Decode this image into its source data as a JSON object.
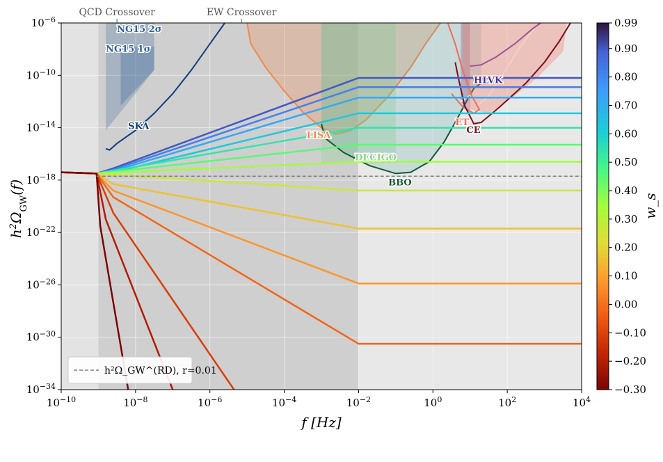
{
  "chart_data": {
    "type": "line",
    "title": "",
    "xlabel": "f  [Hz]",
    "ylabel": "h²Ω_GW(f)",
    "x_scale": "log",
    "y_scale": "log",
    "xlim": [
      1e-10,
      10000
    ],
    "ylim": [
      1e-34,
      1e-06
    ],
    "x_ticks": [
      {
        "label": "10^-10",
        "base": "10",
        "exp": "−10",
        "value": 1e-10
      },
      {
        "label": "10^-8",
        "base": "10",
        "exp": "−8",
        "value": 1e-08
      },
      {
        "label": "10^-6",
        "base": "10",
        "exp": "−6",
        "value": 1e-06
      },
      {
        "label": "10^-4",
        "base": "10",
        "exp": "−4",
        "value": 0.0001
      },
      {
        "label": "10^-2",
        "base": "10",
        "exp": "−2",
        "value": 0.01
      },
      {
        "label": "10^0",
        "base": "10",
        "exp": "0",
        "value": 1
      },
      {
        "label": "10^2",
        "base": "10",
        "exp": "2",
        "value": 100
      },
      {
        "label": "10^4",
        "base": "10",
        "exp": "4",
        "value": 10000
      }
    ],
    "y_ticks": [
      {
        "label": "10^-6",
        "base": "10",
        "exp": "−6",
        "value": 1e-06
      },
      {
        "label": "10^-10",
        "base": "10",
        "exp": "−10",
        "value": 1e-10
      },
      {
        "label": "10^-14",
        "base": "10",
        "exp": "−14",
        "value": 1e-14
      },
      {
        "label": "10^-18",
        "base": "10",
        "exp": "−18",
        "value": 1e-18
      },
      {
        "label": "10^-22",
        "base": "10",
        "exp": "−22",
        "value": 1e-22
      },
      {
        "label": "10^-26",
        "base": "10",
        "exp": "−26",
        "value": 1e-26
      },
      {
        "label": "10^-30",
        "base": "10",
        "exp": "−30",
        "value": 1e-30
      },
      {
        "label": "10^-34",
        "base": "10",
        "exp": "−34",
        "value": 1e-34
      }
    ],
    "top_markers": [
      {
        "label": "QCD Crossover",
        "log_f": -8.5
      },
      {
        "label": "EW Crossover",
        "log_f": -5.15
      }
    ],
    "shaded_regions": [
      {
        "log_f_range": [
          -10,
          -9.0
        ],
        "color": "#e3e3e3"
      },
      {
        "log_f_range": [
          -9.0,
          -2.0
        ],
        "color": "#cfcfcf"
      },
      {
        "log_f_range": [
          -2.0,
          4.0
        ],
        "color": "#e8e8e8"
      }
    ],
    "legend": {
      "position": "lower-left",
      "entry": "h²Ω_GW^(RD), r=0.01",
      "style": "dashed",
      "color": "#808080"
    },
    "reference_line": {
      "log_h2omega": -17.7
    },
    "series_note": "Each curve is log10(h²Ω) vs log10(f); one curve per equation-of-state w_s, colored by colorbar.",
    "series": [
      {
        "w_s": 0.99,
        "points": [
          [
            -10,
            -17.4
          ],
          [
            -9.05,
            -17.5
          ],
          [
            -8.6,
            -17.1
          ],
          [
            -2.0,
            -10.2
          ],
          [
            4.0,
            -10.2
          ]
        ]
      },
      {
        "w_s": 0.9,
        "points": [
          [
            -10,
            -17.4
          ],
          [
            -9.05,
            -17.5
          ],
          [
            -8.6,
            -17.2
          ],
          [
            -2.0,
            -10.9
          ],
          [
            4.0,
            -10.9
          ]
        ]
      },
      {
        "w_s": 0.8,
        "points": [
          [
            -10,
            -17.4
          ],
          [
            -9.05,
            -17.5
          ],
          [
            -8.6,
            -17.3
          ],
          [
            -2.0,
            -11.7
          ],
          [
            4.0,
            -11.7
          ]
        ]
      },
      {
        "w_s": 0.7,
        "points": [
          [
            -10,
            -17.4
          ],
          [
            -9.05,
            -17.5
          ],
          [
            -8.6,
            -17.4
          ],
          [
            -2.0,
            -12.9
          ],
          [
            4.0,
            -12.9
          ]
        ]
      },
      {
        "w_s": 0.6,
        "points": [
          [
            -10,
            -17.4
          ],
          [
            -9.05,
            -17.5
          ],
          [
            -2.0,
            -14.0
          ],
          [
            4.0,
            -14.0
          ]
        ]
      },
      {
        "w_s": 0.5,
        "points": [
          [
            -10,
            -17.4
          ],
          [
            -9.05,
            -17.5
          ],
          [
            -2.0,
            -15.3
          ],
          [
            4.0,
            -15.3
          ]
        ]
      },
      {
        "w_s": 0.4,
        "points": [
          [
            -10,
            -17.4
          ],
          [
            -9.05,
            -17.5
          ],
          [
            -2.0,
            -16.6
          ],
          [
            4.0,
            -16.6
          ]
        ]
      },
      {
        "w_s": 0.3,
        "points": [
          [
            -10,
            -17.4
          ],
          [
            -9.05,
            -17.5
          ],
          [
            -2.0,
            -18.8
          ],
          [
            4.0,
            -18.8
          ]
        ]
      },
      {
        "w_s": 0.2,
        "points": [
          [
            -10,
            -17.4
          ],
          [
            -9.05,
            -17.5
          ],
          [
            -8.6,
            -18.3
          ],
          [
            -2.0,
            -21.7
          ],
          [
            4.0,
            -21.7
          ]
        ]
      },
      {
        "w_s": 0.1,
        "points": [
          [
            -10,
            -17.4
          ],
          [
            -9.05,
            -17.5
          ],
          [
            -8.6,
            -18.8
          ],
          [
            -2.0,
            -25.9
          ],
          [
            4.0,
            -25.9
          ]
        ]
      },
      {
        "w_s": 0.0,
        "points": [
          [
            -10,
            -17.4
          ],
          [
            -9.05,
            -17.5
          ],
          [
            -8.6,
            -19.3
          ],
          [
            -2.0,
            -30.5
          ],
          [
            4.0,
            -30.5
          ]
        ]
      },
      {
        "w_s": -0.1,
        "points": [
          [
            -10,
            -17.4
          ],
          [
            -9.05,
            -17.5
          ],
          [
            -8.6,
            -20.5
          ],
          [
            -5.35,
            -34.0
          ]
        ]
      },
      {
        "w_s": -0.2,
        "points": [
          [
            -10,
            -17.4
          ],
          [
            -9.05,
            -17.5
          ],
          [
            -8.8,
            -21.0
          ],
          [
            -7.0,
            -34.0
          ]
        ]
      },
      {
        "w_s": -0.3,
        "points": [
          [
            -10,
            -17.4
          ],
          [
            -9.05,
            -17.5
          ],
          [
            -8.95,
            -21.5
          ],
          [
            -8.2,
            -34.0
          ]
        ]
      }
    ],
    "detectors": [
      {
        "name": "NG15 2σ",
        "color": "#2e5f99"
      },
      {
        "name": "NG15 1σ",
        "color": "#2e5f99"
      },
      {
        "name": "SKA",
        "color": "#123c7a"
      },
      {
        "name": "LISA",
        "color": "#f08a4b"
      },
      {
        "name": "DECIGO",
        "color": "#8fd48f"
      },
      {
        "name": "BBO",
        "color": "#145a32"
      },
      {
        "name": "HLVK",
        "color": "#4b2e83"
      },
      {
        "name": "ET",
        "color": "#f06a5a"
      },
      {
        "name": "CE",
        "color": "#7a0e1a"
      }
    ],
    "colorbar": {
      "label": "w_s",
      "min": -0.3,
      "max": 0.99,
      "ticks": [
        "0.99",
        "0.90",
        "0.80",
        "0.70",
        "0.60",
        "0.50",
        "0.40",
        "0.30",
        "0.20",
        "0.10",
        "0.00",
        "−0.10",
        "−0.20",
        "−0.30"
      ],
      "tick_values": [
        0.99,
        0.9,
        0.8,
        0.7,
        0.6,
        0.5,
        0.4,
        0.3,
        0.2,
        0.1,
        0.0,
        -0.1,
        -0.2,
        -0.3
      ],
      "colormap": "turbo"
    }
  }
}
